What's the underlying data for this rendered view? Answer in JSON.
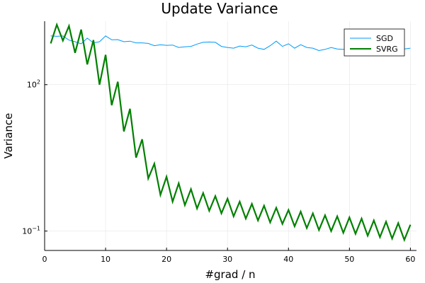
{
  "chart_data": {
    "type": "line",
    "title": "Update Variance",
    "xlabel": "#grad / n",
    "ylabel": "Variance",
    "xlim": [
      0,
      61
    ],
    "xticks": [
      0,
      10,
      20,
      30,
      40,
      50,
      60
    ],
    "yscale": "log",
    "ylim": [
      0.04,
      2000
    ],
    "yticks": [
      {
        "value": 100,
        "base": "10",
        "exp": "2"
      },
      {
        "value": 0.1,
        "base": "10",
        "exp": "−1"
      }
    ],
    "grid": true,
    "legend": "top-right",
    "series": [
      {
        "name": "SGD",
        "color": "#009AFA",
        "x": [
          1,
          2,
          3,
          4,
          5,
          6,
          7,
          8,
          9,
          10,
          11,
          12,
          13,
          14,
          15,
          16,
          17,
          18,
          19,
          20,
          21,
          22,
          23,
          24,
          25,
          26,
          27,
          28,
          29,
          30,
          31,
          32,
          33,
          34,
          35,
          36,
          37,
          38,
          39,
          40,
          41,
          42,
          43,
          44,
          45,
          46,
          47,
          48,
          49,
          50,
          51,
          52,
          53,
          54,
          55,
          56,
          57,
          58,
          59,
          60
        ],
        "values": [
          1000,
          980,
          1000,
          820,
          760,
          690,
          900,
          720,
          760,
          1000,
          830,
          840,
          760,
          780,
          720,
          720,
          700,
          630,
          660,
          640,
          650,
          580,
          600,
          610,
          680,
          740,
          750,
          740,
          610,
          580,
          560,
          620,
          600,
          650,
          560,
          530,
          630,
          780,
          610,
          690,
          560,
          660,
          580,
          560,
          500,
          530,
          580,
          540,
          530,
          560,
          510,
          560,
          520,
          540,
          520,
          540,
          560,
          520,
          540,
          560
        ]
      },
      {
        "name": "SVRG",
        "color": "#008000",
        "x": [
          1,
          2,
          3,
          4,
          5,
          6,
          7,
          8,
          9,
          10,
          11,
          12,
          13,
          14,
          15,
          16,
          17,
          18,
          19,
          20,
          21,
          22,
          23,
          24,
          25,
          26,
          27,
          28,
          29,
          30,
          31,
          32,
          33,
          34,
          35,
          36,
          37,
          38,
          39,
          40,
          41,
          42,
          43,
          44,
          45,
          46,
          47,
          48,
          49,
          50,
          51,
          52,
          53,
          54,
          55,
          56,
          57,
          58,
          59,
          60
        ],
        "values": [
          700,
          1700,
          800,
          1600,
          450,
          1350,
          260,
          820,
          100,
          410,
          38,
          115,
          11,
          32,
          3.2,
          7.6,
          1.2,
          2.4,
          0.55,
          1.3,
          0.4,
          0.95,
          0.34,
          0.72,
          0.29,
          0.6,
          0.26,
          0.52,
          0.23,
          0.46,
          0.2,
          0.4,
          0.18,
          0.36,
          0.165,
          0.33,
          0.15,
          0.3,
          0.14,
          0.27,
          0.125,
          0.25,
          0.115,
          0.23,
          0.105,
          0.21,
          0.1,
          0.2,
          0.092,
          0.19,
          0.088,
          0.18,
          0.08,
          0.165,
          0.075,
          0.155,
          0.07,
          0.145,
          0.066,
          0.135
        ]
      }
    ]
  }
}
